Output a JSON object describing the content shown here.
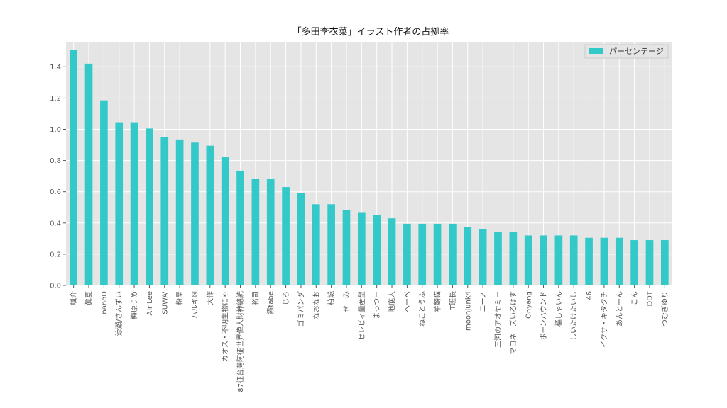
{
  "chart_data": {
    "type": "bar",
    "title": "「多田李衣菜」イラスト作者の占拠率",
    "xlabel": "",
    "ylabel": "",
    "ylim": [
      0,
      1.56
    ],
    "yticks": [
      "0.0",
      "0.2",
      "0.4",
      "0.6",
      "0.8",
      "1.0",
      "1.2",
      "1.4"
    ],
    "grid": true,
    "legend_position": "top-right",
    "colors": {
      "bar": "#33c9c9",
      "plot_bg": "#e5e5e5",
      "grid": "#ffffff"
    },
    "categories": [
      "颯介",
      "眞夏",
      "nanoD",
      "涼瀬/さんずい",
      "梅原うめ",
      "Air Lee",
      "SUWA'",
      "粉屋",
      "ハルキ☒",
      "大作",
      "カオス・不明生物にゃ",
      "87征台灣阿征世界偉人財神總統",
      "裕司",
      "霞tabe",
      "じろ",
      "ゴミパンダ",
      "なおなお",
      "柏城",
      "せーみ",
      "セレビィ量産型",
      "まっつー",
      "地底人",
      "へーべ",
      "ねことうふ",
      "華麟猫",
      "T班長",
      "moonjunk4",
      "ニーノ",
      "三河のアオヤミー",
      "マヨネーズいろはす",
      "Onyang",
      "ボーンハウンド",
      "橘しゃいん",
      "しいたけたいし",
      "46",
      "イクサ・キタクチ",
      "あんとーん",
      "こん",
      "DDT",
      "つむぎゆり"
    ],
    "series": [
      {
        "name": "パーセンテージ",
        "values": [
          1.51,
          1.42,
          1.185,
          1.045,
          1.045,
          1.005,
          0.95,
          0.935,
          0.915,
          0.895,
          0.825,
          0.735,
          0.685,
          0.685,
          0.63,
          0.59,
          0.52,
          0.52,
          0.485,
          0.465,
          0.45,
          0.43,
          0.395,
          0.395,
          0.395,
          0.395,
          0.375,
          0.36,
          0.34,
          0.34,
          0.32,
          0.32,
          0.32,
          0.32,
          0.305,
          0.305,
          0.305,
          0.29,
          0.29,
          0.29
        ]
      }
    ]
  }
}
